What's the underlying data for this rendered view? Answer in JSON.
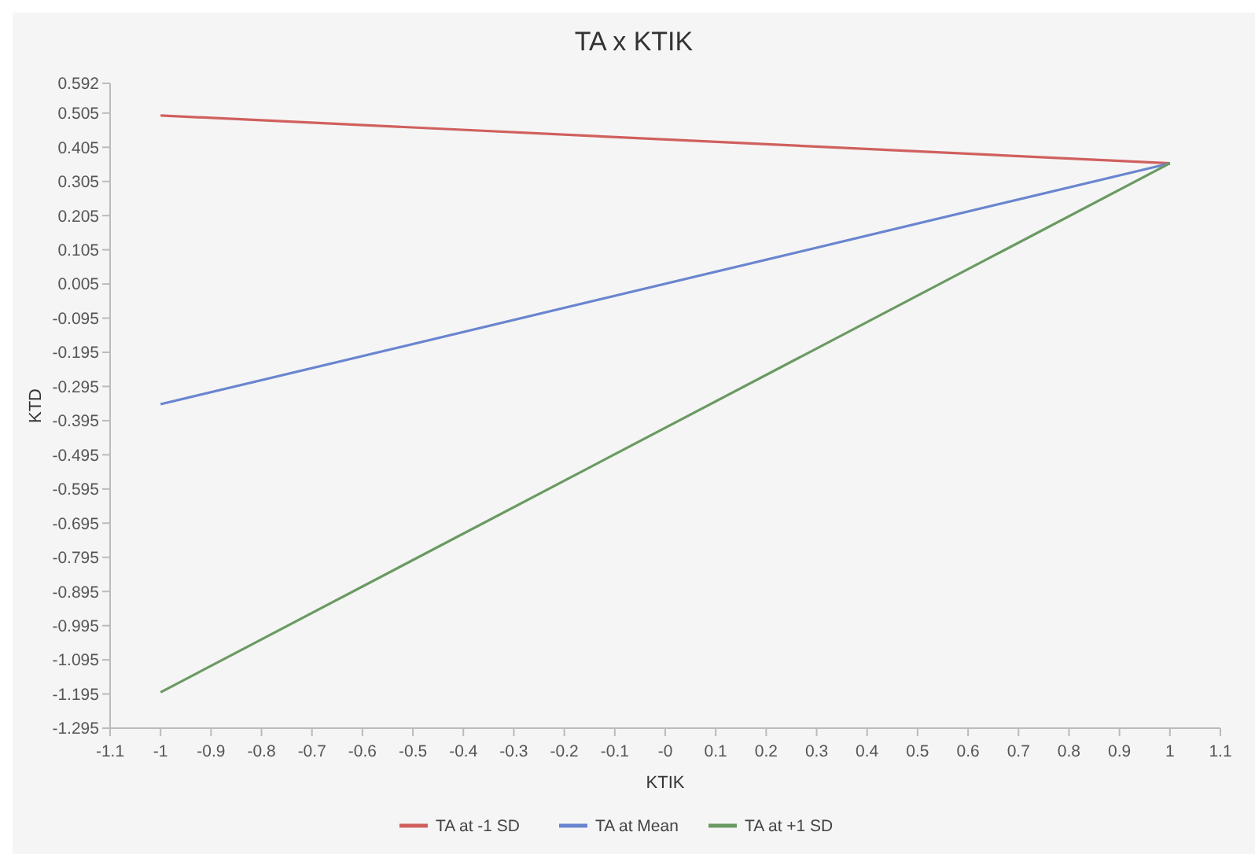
{
  "chart_data": {
    "type": "line",
    "title": "TA x KTIK",
    "xlabel": "KTIK",
    "ylabel": "KTD",
    "x": [
      -1,
      1
    ],
    "series": [
      {
        "name": "TA at -1 SD",
        "color": "#d0605e",
        "values": [
          0.498,
          0.358
        ]
      },
      {
        "name": "TA at Mean",
        "color": "#6a85cf",
        "values": [
          -0.347,
          0.358
        ]
      },
      {
        "name": "TA at +1 SD",
        "color": "#6a9a62",
        "values": [
          -1.19,
          0.358
        ]
      }
    ],
    "xlim": [
      -1.1,
      1.1
    ],
    "xticks": [
      -1.1,
      -1,
      -0.9,
      -0.8,
      -0.7,
      -0.6,
      -0.5,
      -0.4,
      -0.3,
      -0.2,
      -0.1,
      {
        "value": 0,
        "label": "-0"
      },
      0.1,
      0.2,
      0.3,
      0.4,
      0.5,
      0.6,
      0.7,
      0.8,
      0.9,
      1,
      1.1
    ],
    "ylim": [
      -1.295,
      0.592
    ],
    "yticks": [
      0.592,
      0.505,
      0.405,
      0.305,
      0.205,
      0.105,
      0.005,
      -0.095,
      -0.195,
      -0.295,
      -0.395,
      -0.495,
      -0.595,
      -0.695,
      -0.795,
      -0.895,
      -0.995,
      -1.095,
      -1.195,
      -1.295
    ],
    "grid": false,
    "legend": "bottom",
    "marker": "none",
    "line_style": "solid"
  }
}
